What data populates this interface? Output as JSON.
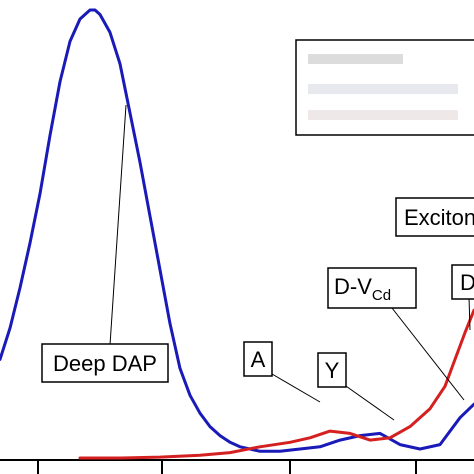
{
  "chart_data": {
    "type": "line",
    "title": "",
    "xlabel": "",
    "ylabel": "",
    "grid": false,
    "legend": {
      "position": "top-right",
      "entries_legible": false
    },
    "series": [
      {
        "color": "#1a1ab8",
        "x": [
          0,
          10,
          20,
          30,
          40,
          50,
          60,
          70,
          80,
          90,
          95,
          100,
          110,
          120,
          130,
          140,
          150,
          160,
          170,
          180,
          190,
          200,
          210,
          220,
          230,
          240,
          250,
          260,
          280,
          300,
          320,
          340,
          360,
          380,
          400,
          420,
          440,
          460,
          474
        ],
        "y": [
          0.22,
          0.29,
          0.38,
          0.48,
          0.59,
          0.72,
          0.84,
          0.93,
          0.98,
          1.0,
          1.0,
          0.99,
          0.95,
          0.88,
          0.77,
          0.66,
          0.54,
          0.42,
          0.3,
          0.2,
          0.14,
          0.1,
          0.07,
          0.05,
          0.035,
          0.025,
          0.02,
          0.015,
          0.015,
          0.02,
          0.025,
          0.04,
          0.05,
          0.055,
          0.03,
          0.02,
          0.03,
          0.09,
          0.12
        ]
      },
      {
        "color": "#d42020",
        "x": [
          80,
          120,
          160,
          200,
          230,
          260,
          290,
          310,
          330,
          350,
          370,
          390,
          410,
          430,
          445,
          455,
          465,
          474
        ],
        "y": [
          0.0,
          0.0,
          0.002,
          0.006,
          0.012,
          0.025,
          0.035,
          0.045,
          0.06,
          0.055,
          0.04,
          0.045,
          0.07,
          0.11,
          0.16,
          0.22,
          0.28,
          0.33
        ]
      }
    ],
    "annotations": [
      {
        "label": "Deep DAP"
      },
      {
        "label": "A"
      },
      {
        "label": "Y"
      },
      {
        "label_main": "D-V",
        "label_sub": "Cd"
      },
      {
        "label": "D"
      },
      {
        "label": "Exciton"
      }
    ],
    "x_ticks_visible": 4
  }
}
